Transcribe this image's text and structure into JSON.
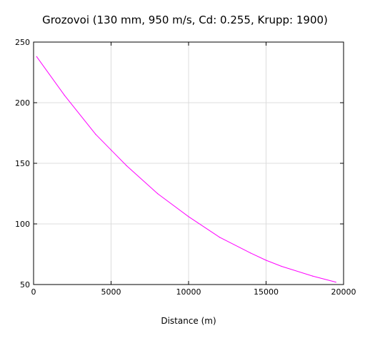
{
  "chart_data": {
    "type": "line",
    "title": "Grozovoi (130 mm, 950 m/s, Cd: 0.255, Krupp: 1900)",
    "xlabel": "Distance (m)",
    "ylabel": "",
    "xlim": [
      0,
      20000
    ],
    "ylim": [
      50,
      250
    ],
    "xticks": [
      "0",
      "5000",
      "10000",
      "15000",
      "20000"
    ],
    "yticks": [
      "50",
      "100",
      "150",
      "200",
      "250"
    ],
    "grid": true,
    "line_color": "#ff00ff",
    "series": [
      {
        "x": [
          200,
          2000,
          4000,
          5000,
          6000,
          8000,
          10000,
          12000,
          14000,
          15000,
          16000,
          18000,
          19500
        ],
        "values": [
          238,
          206,
          174,
          161,
          148,
          125,
          106,
          89,
          76,
          70,
          65,
          57,
          52
        ]
      }
    ]
  }
}
